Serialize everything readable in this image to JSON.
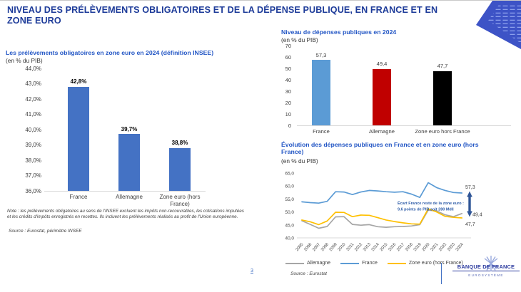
{
  "slide": {
    "title_line1": "NIVEAU DES PRÉLÈVEMENTS OBLIGATOIRES ET DE LA DÉPENSE PUBLIQUE, EN FRANCE ET EN",
    "title_line2": "ZONE EURO",
    "page_number": "3",
    "footer_logo": {
      "brand": "BANQUE DE FRANCE",
      "subbrand": "EUROSYSTÈME"
    }
  },
  "colors": {
    "title_navy": "#1d3b99",
    "chart_title_blue": "#2457c5",
    "bar_blue": "#4472C4",
    "france_light_blue": "#5B9BD5",
    "allemagne_red": "#C00000",
    "zone_euro_black": "#000000",
    "line_grey": "#A6A6A6",
    "line_yellow": "#FFC000",
    "arrow_blue": "#2F5597",
    "axis_grey": "#D9D9D9"
  },
  "chart_data": [
    {
      "type": "bar",
      "title": "Les prélèvements obligatoires en zone euro en 2024 (définition INSEE)",
      "subtitle": "(en % du PIB)",
      "categories": [
        "France",
        "Allemagne",
        "Zone euro (hors France)"
      ],
      "values": [
        42.8,
        39.7,
        38.8
      ],
      "value_labels": [
        "42,8%",
        "39,7%",
        "38,8%"
      ],
      "ylim": [
        36,
        44
      ],
      "ytick_labels": [
        "44,0%",
        "43,0%",
        "42,0%",
        "41,0%",
        "40,0%",
        "39,0%",
        "38,0%",
        "37,0%",
        "36,0%"
      ],
      "bar_colors": [
        "#4472C4",
        "#4472C4",
        "#4472C4"
      ],
      "grid": false,
      "note": "Note : les prélèvements obligatoires au sens de l'INSEE excluent les impôts non-recouvrables, les cotisations imputées et les crédits d'impôts enregistrés en recettes. Ils incluent les prélèvements réalisés au profit de l'Union européenne.",
      "source": "Source : Eurostat, périmètre INSEE"
    },
    {
      "type": "bar",
      "title": "Niveau de dépenses publiques en 2024",
      "subtitle": "(en % du PIB)",
      "categories": [
        "France",
        "Allemagne",
        "Zone euro hors France"
      ],
      "values": [
        57.3,
        49.4,
        47.7
      ],
      "value_labels": [
        "57,3",
        "49,4",
        "47,7"
      ],
      "ylim": [
        0,
        70
      ],
      "ytick_labels": [
        "70",
        "60",
        "50",
        "40",
        "30",
        "20",
        "10",
        "0"
      ],
      "bar_colors": [
        "#5B9BD5",
        "#C00000",
        "#000000"
      ],
      "grid": false
    },
    {
      "type": "line",
      "title": "Évolution des dépenses publiques en France et en zone euro (hors France)",
      "subtitle": "(en % du PIB)",
      "x": [
        "2005",
        "2006",
        "2007",
        "2008",
        "2009",
        "2010",
        "2011",
        "2012",
        "2013",
        "2014",
        "2015",
        "2016",
        "2017",
        "2018",
        "2019",
        "2020",
        "2021",
        "2022",
        "2023",
        "2024"
      ],
      "ylim": [
        40,
        65
      ],
      "ytick_labels": [
        "65,0",
        "60,0",
        "55,0",
        "50,0",
        "45,0",
        "40,0"
      ],
      "ytick_values": [
        65,
        60,
        55,
        50,
        45,
        40
      ],
      "series": [
        {
          "name": "Allemagne",
          "color": "#A6A6A6",
          "values": [
            46.6,
            45.2,
            43.7,
            44.4,
            48.1,
            48.2,
            45.2,
            44.9,
            45.1,
            44.3,
            44.1,
            44.3,
            44.4,
            44.6,
            45.1,
            50.7,
            50.4,
            48.9,
            48.2,
            49.4
          ]
        },
        {
          "name": "France",
          "color": "#5B9BD5",
          "values": [
            53.9,
            53.6,
            53.4,
            54.1,
            57.8,
            57.7,
            56.7,
            57.7,
            58.3,
            58.1,
            57.8,
            57.6,
            57.8,
            56.9,
            55.6,
            61.3,
            59.4,
            58.3,
            57.5,
            57.3
          ]
        },
        {
          "name": "Zone euro (hors France)",
          "color": "#FFC000",
          "values": [
            46.9,
            46.2,
            45.1,
            46.5,
            49.9,
            49.8,
            48.2,
            48.8,
            48.7,
            47.8,
            46.9,
            46.3,
            45.8,
            45.4,
            45.3,
            51.2,
            50.0,
            48.3,
            47.9,
            47.7
          ]
        }
      ],
      "end_labels": [
        "57,3",
        "49,4",
        "47,7"
      ],
      "annotation": {
        "line1": "Écart France reste de la zone euro :",
        "line2": "9,6 points de PIB soit 280 Md€"
      },
      "legend_position": "bottom",
      "grid": false,
      "source": "Source : Eurostat"
    }
  ]
}
